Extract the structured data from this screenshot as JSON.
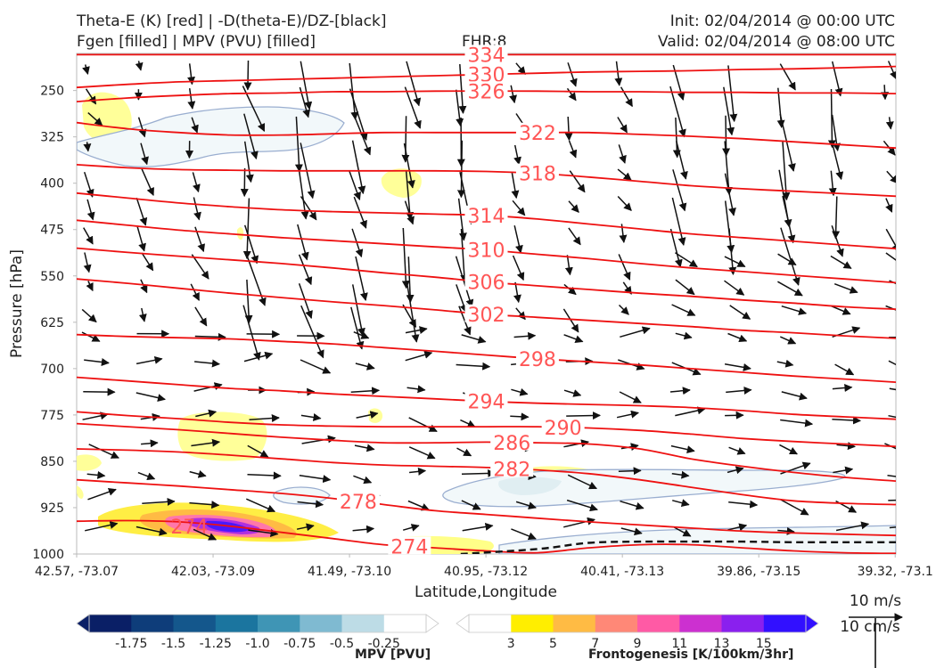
{
  "header": {
    "title_line1": "Theta-E (K) [red] | -D(theta-E)/DZ-[black]",
    "title_line2": "Fgen [filled] | MPV (PVU) [filled]",
    "fhr": "FHR:8",
    "init": "Init: 02/04/2014 @ 00:00 UTC",
    "valid": "Valid: 02/04/2014 @ 08:00 UTC"
  },
  "chart_data": {
    "type": "cross-section",
    "xlabel": "Latitude,Longitude",
    "ylabel": "Pressure [hPa]",
    "x_ticks": [
      "42.57, -73.07",
      "42.03, -73.09",
      "41.49, -73.10",
      "40.95, -73.12",
      "40.41, -73.13",
      "39.86, -73.15",
      "39.32, -73.1"
    ],
    "y_ticks": [
      "250",
      "325",
      "400",
      "475",
      "550",
      "625",
      "700",
      "775",
      "850",
      "925",
      "1000"
    ],
    "ylim": [
      1000,
      190
    ],
    "theta_e_contours": [
      {
        "label": "334",
        "y": [
          192,
          192,
          192,
          192,
          192,
          192,
          192,
          192,
          192,
          192,
          192,
          192,
          192,
          192,
          192,
          192,
          192
        ],
        "label_x": 8
      },
      {
        "label": "330",
        "y": [
          245,
          240,
          236,
          234,
          232,
          230,
          228,
          226,
          224,
          222,
          220,
          219,
          218,
          216,
          215,
          213,
          211
        ],
        "label_x": 8
      },
      {
        "label": "326",
        "y": [
          268,
          262,
          258,
          255,
          254,
          252,
          252,
          251,
          251,
          251,
          252,
          252,
          253,
          253,
          254,
          254,
          255
        ],
        "label_x": 8
      },
      {
        "label": "322",
        "y": [
          302,
          312,
          318,
          322,
          322,
          320,
          318,
          318,
          318,
          318,
          318,
          321,
          324,
          328,
          333,
          338,
          343
        ],
        "label_x": 9
      },
      {
        "label": "318",
        "y": [
          370,
          375,
          378,
          379,
          380,
          380,
          380,
          380,
          381,
          384,
          390,
          397,
          404,
          409,
          413,
          417,
          421
        ],
        "label_x": 9
      },
      {
        "label": "314",
        "y": [
          416,
          424,
          432,
          438,
          443,
          446,
          448,
          450,
          452,
          458,
          466,
          474,
          482,
          488,
          494,
          500,
          506
        ],
        "label_x": 8
      },
      {
        "label": "310",
        "y": [
          460,
          468,
          476,
          482,
          488,
          493,
          498,
          503,
          508,
          515,
          522,
          530,
          537,
          543,
          549,
          555,
          561
        ],
        "label_x": 8
      },
      {
        "label": "306",
        "y": [
          505,
          512,
          518,
          524,
          530,
          537,
          545,
          552,
          560,
          566,
          572,
          578,
          583,
          589,
          594,
          600,
          604
        ],
        "label_x": 8
      },
      {
        "label": "302",
        "y": [
          555,
          562,
          570,
          578,
          585,
          592,
          598,
          605,
          612,
          617,
          622,
          627,
          632,
          638,
          642,
          647,
          651
        ],
        "label_x": 8
      },
      {
        "label": "298",
        "y": [
          645,
          648,
          650,
          652,
          656,
          660,
          666,
          672,
          678,
          684,
          689,
          694,
          700,
          706,
          712,
          717,
          722
        ],
        "label_x": 9
      },
      {
        "label": "294",
        "y": [
          714,
          720,
          726,
          732,
          736,
          741,
          745,
          749,
          753,
          756,
          758,
          760,
          763,
          768,
          774,
          778,
          782
        ],
        "label_x": 8
      },
      {
        "label": "290",
        "y": [
          770,
          776,
          781,
          787,
          791,
          793,
          794,
          794,
          794,
          794,
          796,
          800,
          806,
          813,
          818,
          822,
          826
        ],
        "label_x": 9.5
      },
      {
        "label": "286",
        "y": [
          789,
          794,
          799,
          805,
          811,
          816,
          820,
          820,
          819,
          820,
          822,
          830,
          846,
          858,
          868,
          876,
          882
        ],
        "label_x": 8.5
      },
      {
        "label": "282",
        "y": [
          830,
          832,
          835,
          840,
          846,
          852,
          856,
          858,
          860,
          864,
          870,
          880,
          892,
          904,
          914,
          918,
          920
        ],
        "label_x": 8.5
      },
      {
        "label": "278",
        "y": [
          880,
          885,
          890,
          896,
          902,
          910,
          920,
          930,
          936,
          942,
          948,
          953,
          958,
          963,
          966,
          968,
          970
        ],
        "label_x": 5.5
      },
      {
        "label": "274",
        "y": [
          947,
          946,
          948,
          955,
          965,
          975,
          985,
          990,
          995,
          998,
          990,
          985,
          985,
          990,
          995,
          998,
          999
        ],
        "label_x": 6.5
      }
    ],
    "contour_labels_extra": [
      {
        "label": "274",
        "x": 2.2,
        "y": 955
      }
    ],
    "ddz_black_dashed": {
      "x": [
        7.5,
        9,
        10,
        11,
        12,
        13,
        14,
        15,
        16
      ],
      "y": [
        1000,
        992,
        982,
        980,
        980,
        980,
        981,
        981,
        981
      ]
    },
    "wind_reference": {
      "label_top": "10 m/s",
      "label_bottom": "10 cm/s"
    },
    "colorbar_mpv": {
      "title": "MPV [PVU]",
      "ticks": [
        "-1.75",
        "-1.5",
        "-1.25",
        "-1.0",
        "-0.75",
        "-0.5",
        "-0.25"
      ],
      "colors": [
        "#0a1f66",
        "#0e3d7a",
        "#14578c",
        "#1b759f",
        "#3f95b5",
        "#7fbad1",
        "#bddce6",
        "#ffffff"
      ]
    },
    "colorbar_fgen": {
      "title": "Frontogenesis [K/100km/3hr]",
      "ticks": [
        "3",
        "5",
        "7",
        "9",
        "11",
        "13",
        "15"
      ],
      "colors": [
        "#ffffff",
        "#ffee00",
        "#ffbb44",
        "#ff8877",
        "#ff5aa5",
        "#cc30d0",
        "#8a20ee",
        "#3210ff"
      ]
    }
  }
}
